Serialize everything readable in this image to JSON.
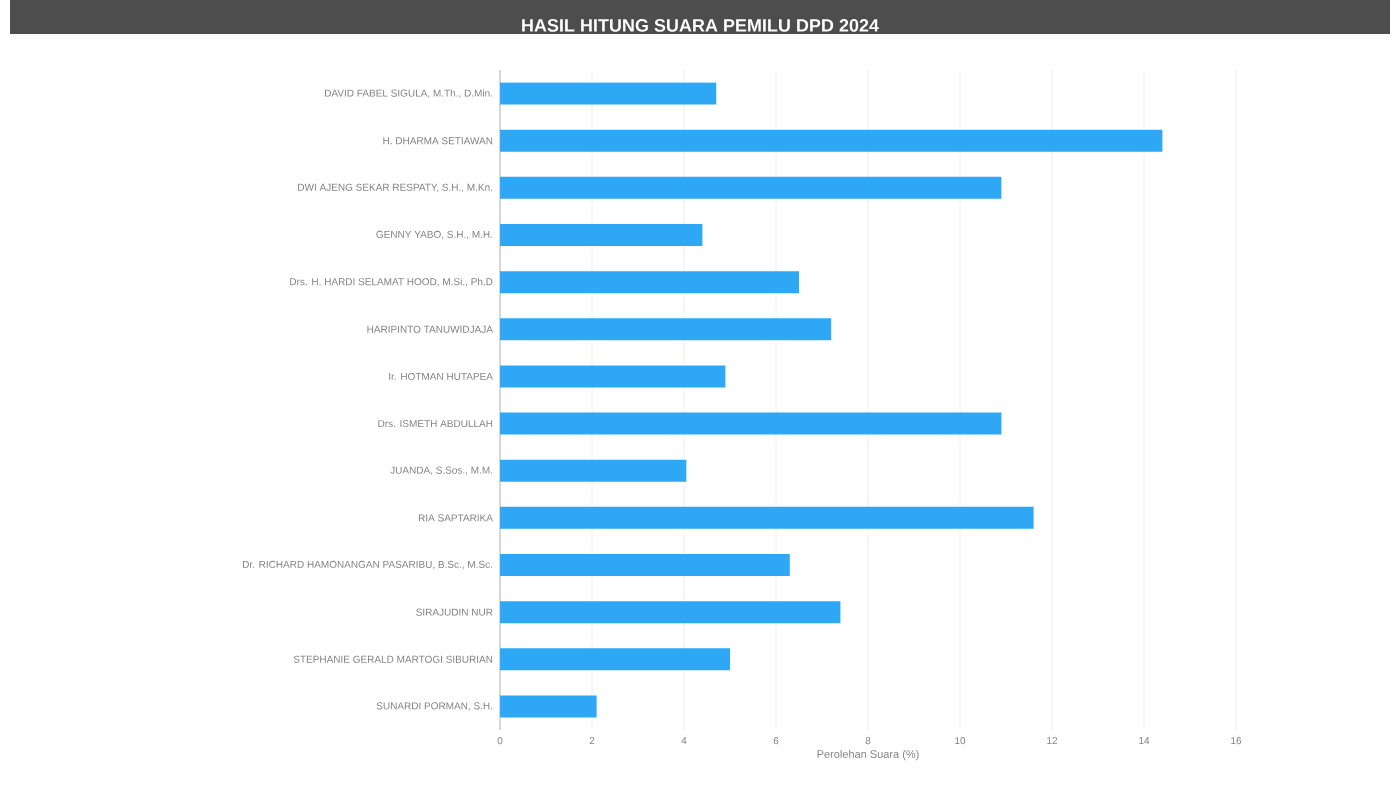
{
  "chart_data": {
    "type": "bar",
    "orientation": "horizontal",
    "title": "HASIL HITUNG SUARA PEMILU DPD 2024",
    "xlabel": "Perolehan Suara (%)",
    "categories": [
      "DAVID FABEL SIGULA, M.Th., D.Min.",
      "H. DHARMA SETIAWAN",
      "DWI AJENG SEKAR RESPATY, S.H., M.Kn.",
      "GENNY YABO, S.H., M.H.",
      "Drs. H. HARDI SELAMAT HOOD, M.Si., Ph.D",
      "HARIPINTO TANUWIDJAJA",
      "Ir. HOTMAN HUTAPEA",
      "Drs. ISMETH ABDULLAH",
      "JUANDA, S.Sos., M.M.",
      "RIA SAPTARIKA",
      "Dr. RICHARD HAMONANGAN PASARIBU, B.Sc., M.Sc.",
      "SIRAJUDIN NUR",
      "STEPHANIE GERALD MARTOGI SIBURIAN",
      "SUNARDI PORMAN, S.H."
    ],
    "values": [
      4.7,
      14.4,
      10.9,
      4.4,
      6.5,
      7.2,
      4.9,
      10.9,
      4.05,
      11.6,
      6.3,
      7.4,
      5.0,
      2.1
    ],
    "color": "#2ea8f5",
    "xlim": [
      0,
      16
    ],
    "xticks": [
      0,
      2,
      4,
      6,
      8,
      10,
      12,
      14,
      16
    ],
    "grid": "x"
  }
}
